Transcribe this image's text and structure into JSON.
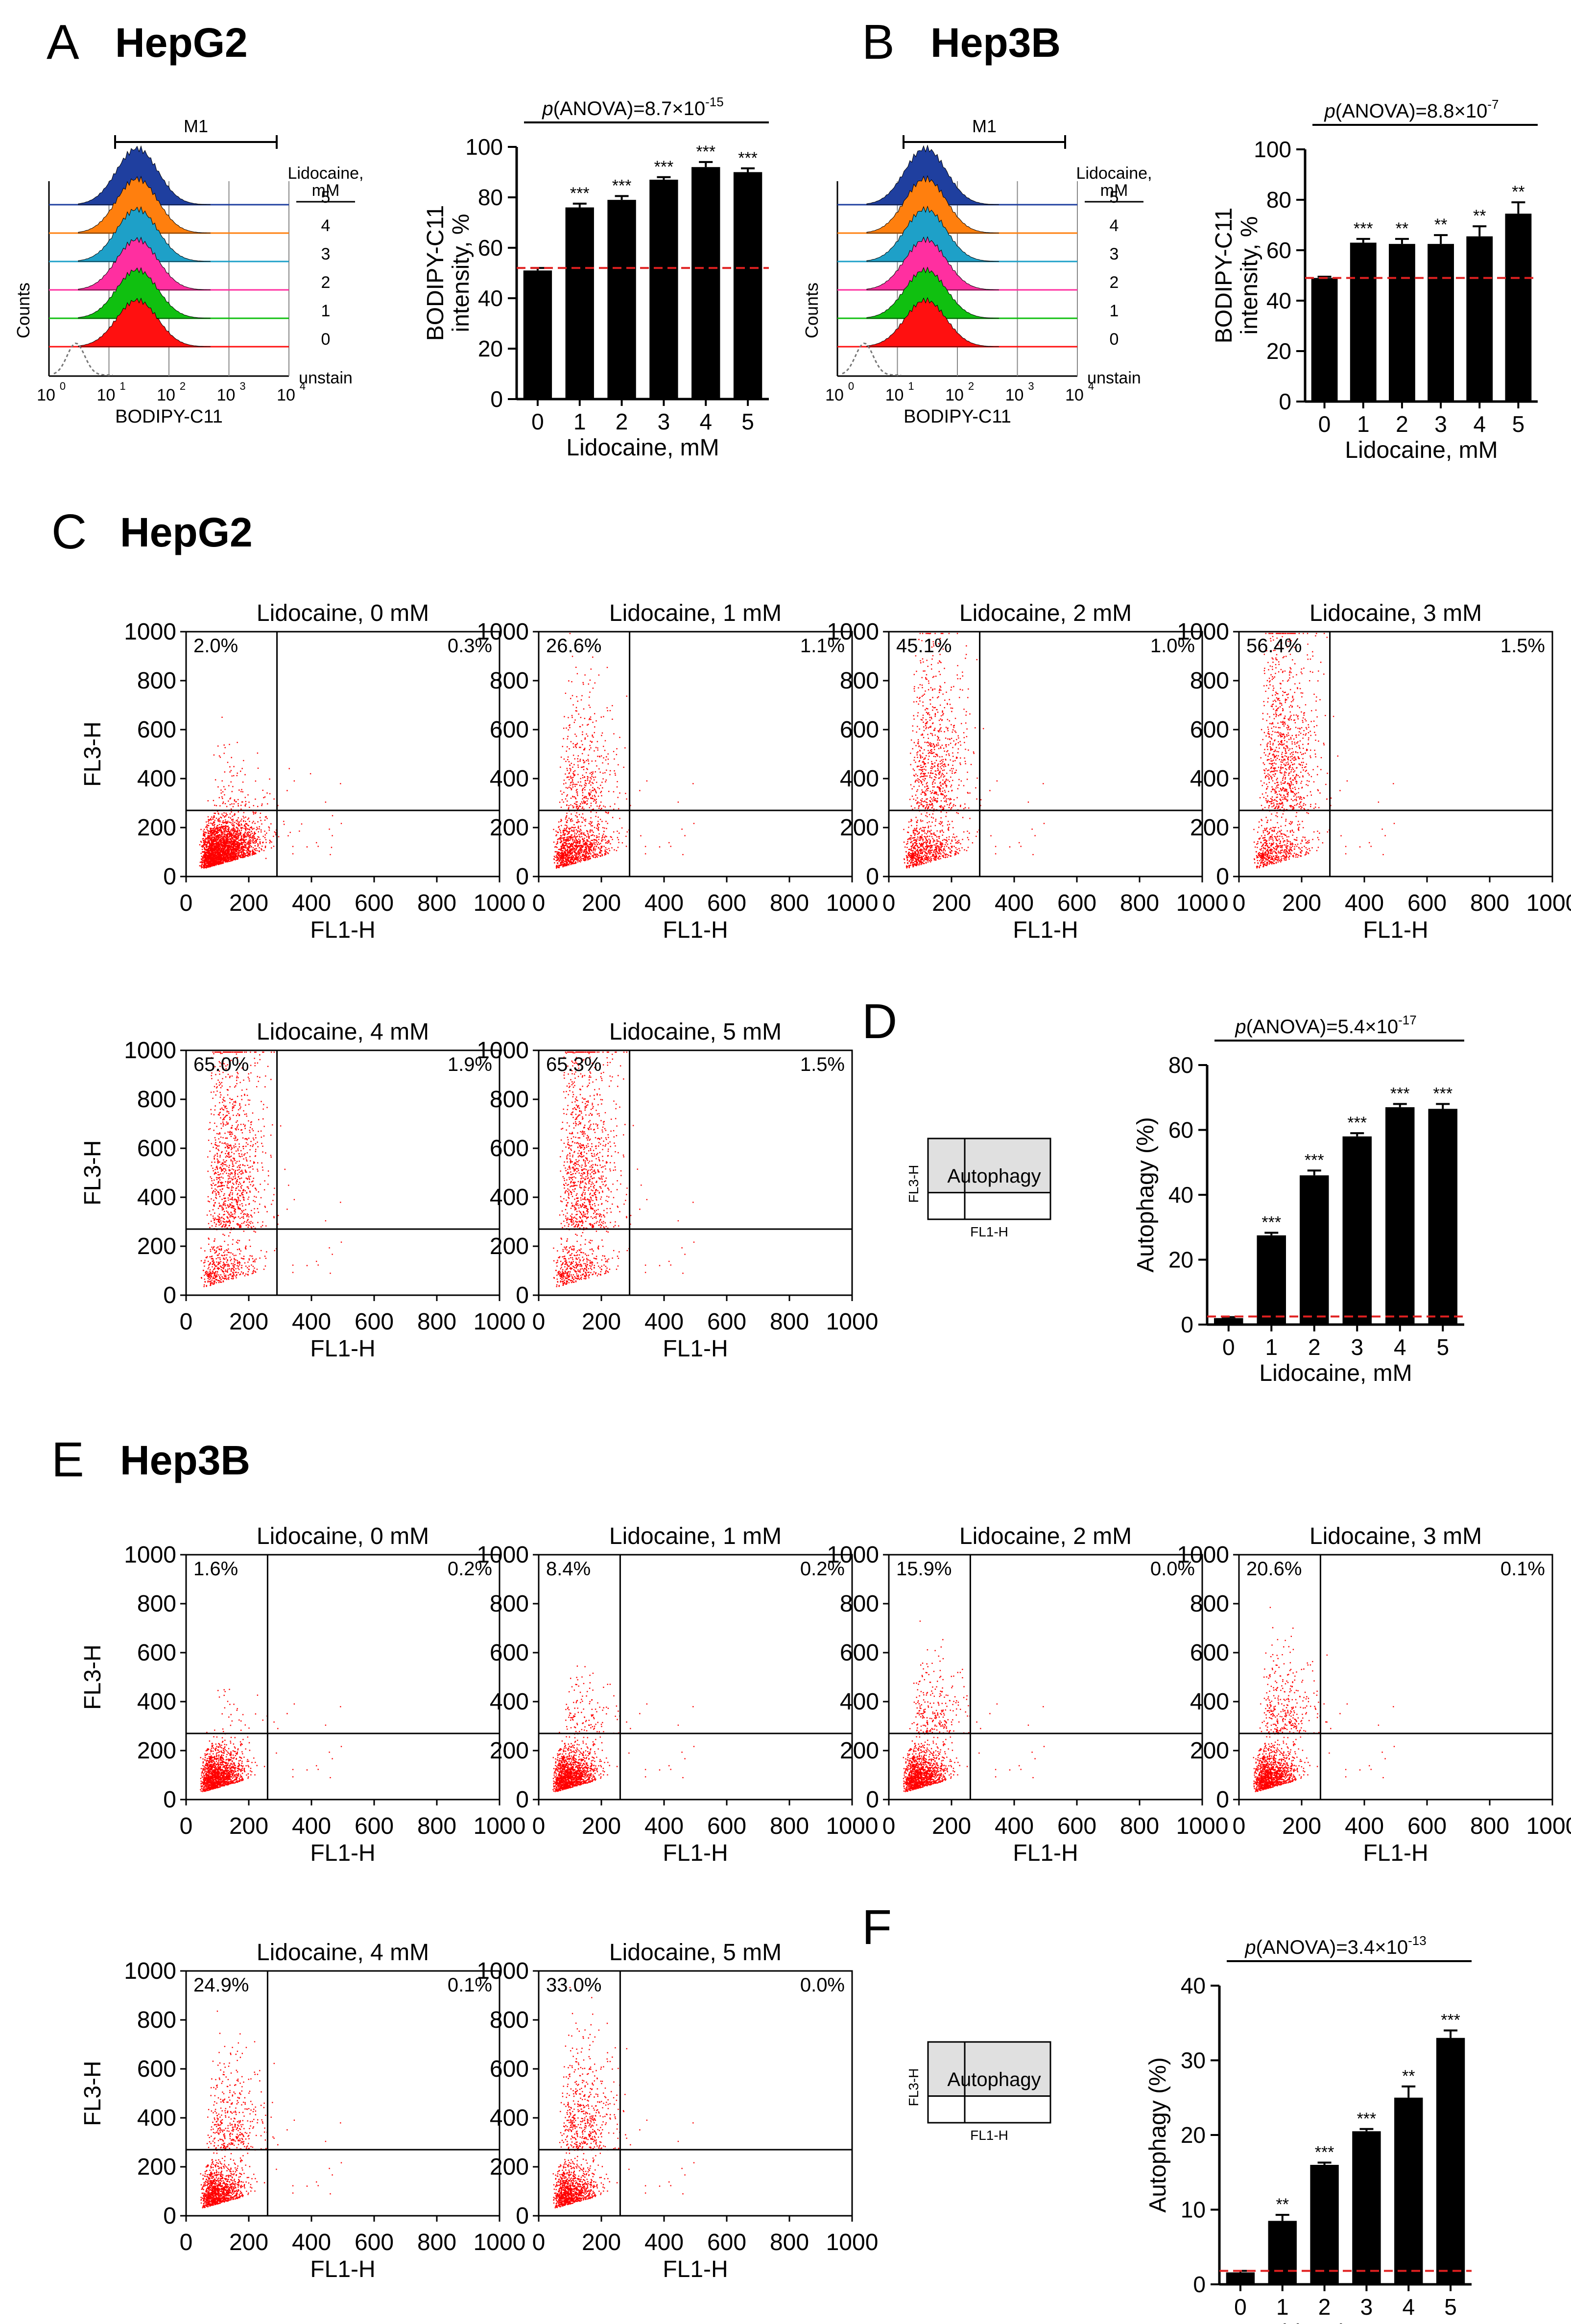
{
  "panels": {
    "A": {
      "letter": "A",
      "cell": "HepG2"
    },
    "B": {
      "letter": "B",
      "cell": "Hep3B"
    },
    "C": {
      "letter": "C",
      "cell": "HepG2"
    },
    "D": {
      "letter": "D"
    },
    "E": {
      "letter": "E",
      "cell": "Hep3B"
    },
    "F": {
      "letter": "F"
    }
  },
  "histogram": {
    "gate_label": "M1",
    "legend_title": [
      "Lidocaine,",
      "mM"
    ],
    "levels": [
      "5",
      "4",
      "3",
      "2",
      "1",
      "0"
    ],
    "unstain": "unstain",
    "xlabel": "BODIPY-C11",
    "ylabel": "Counts",
    "x_ticks": [
      "10",
      "10",
      "10",
      "10",
      "10"
    ],
    "x_exps": [
      "0",
      "1",
      "2",
      "3",
      "4"
    ],
    "colors": [
      "#1f3f9f",
      "#ff7f0e",
      "#1ea0c8",
      "#ff2fa0",
      "#10c010",
      "#ff1010"
    ]
  },
  "quadrant_legend": {
    "label": "Autophagy",
    "ylabel": "FL3-H",
    "xlabel": "FL1-H"
  },
  "chart_data": [
    {
      "id": "A-bar",
      "type": "bar",
      "panel": "A",
      "title_italic": "p",
      "title": "(ANOVA)=8.7×10",
      "title_exp": "-15",
      "categories": [
        "0",
        "1",
        "2",
        "3",
        "4",
        "5"
      ],
      "values": [
        51,
        76,
        79,
        87,
        92,
        90
      ],
      "errors": [
        1,
        1.5,
        1.5,
        1,
        2,
        1.5
      ],
      "significance": [
        "",
        "***",
        "***",
        "***",
        "***",
        "***"
      ],
      "ylim": [
        0,
        100
      ],
      "yticks": [
        "0",
        "20",
        "40",
        "60",
        "80",
        "100"
      ],
      "ylabel": [
        "BODIPY-C11",
        "intensity, %"
      ],
      "xlabel": "Lidocaine, mM",
      "reference_line": 52
    },
    {
      "id": "B-bar",
      "type": "bar",
      "panel": "B",
      "title_italic": "p",
      "title": "(ANOVA)=8.8×10",
      "title_exp": "-7",
      "categories": [
        "0",
        "1",
        "2",
        "3",
        "4",
        "5"
      ],
      "values": [
        49,
        63,
        62.5,
        62.5,
        65.5,
        74.5
      ],
      "errors": [
        0.5,
        1.5,
        2,
        3.5,
        4,
        4.5
      ],
      "significance": [
        "",
        "***",
        "**",
        "**",
        "**",
        "**"
      ],
      "ylim": [
        0,
        100
      ],
      "yticks": [
        "0",
        "20",
        "40",
        "60",
        "80",
        "100"
      ],
      "ylabel": [
        "BODIPY-C11",
        "intensity, %"
      ],
      "xlabel": "Lidocaine, mM",
      "reference_line": 49
    },
    {
      "id": "C-scatter",
      "type": "scatter",
      "panel": "C",
      "xlabel": "FL1-H",
      "ylabel": "FL3-H",
      "xticks": [
        "0",
        "200",
        "400",
        "600",
        "800",
        "1000"
      ],
      "yticks": [
        "0",
        "200",
        "400",
        "600",
        "800",
        "1000"
      ],
      "xlim": [
        0,
        1000
      ],
      "ylim": [
        0,
        1000
      ],
      "gate_x": 290,
      "gate_y": 270,
      "plots": [
        {
          "title": "Lidocaine, 0 mM",
          "upper_left": "2.0%",
          "upper_right": "0.3%"
        },
        {
          "title": "Lidocaine, 1 mM",
          "upper_left": "26.6%",
          "upper_right": "1.1%"
        },
        {
          "title": "Lidocaine, 2 mM",
          "upper_left": "45.1%",
          "upper_right": "1.0%"
        },
        {
          "title": "Lidocaine, 3 mM",
          "upper_left": "56.4%",
          "upper_right": "1.5%"
        },
        {
          "title": "Lidocaine, 4 mM",
          "upper_left": "65.0%",
          "upper_right": "1.9%"
        },
        {
          "title": "Lidocaine, 5 mM",
          "upper_left": "65.3%",
          "upper_right": "1.5%"
        }
      ]
    },
    {
      "id": "D-bar",
      "type": "bar",
      "panel": "D",
      "title_italic": "p",
      "title": "(ANOVA)=5.4×10",
      "title_exp": "-17",
      "categories": [
        "0",
        "1",
        "2",
        "3",
        "4",
        "5"
      ],
      "values": [
        2,
        27.5,
        46,
        58,
        67,
        66.5
      ],
      "errors": [
        0.3,
        0.8,
        1.5,
        1,
        1,
        1.5
      ],
      "significance": [
        "",
        "***",
        "***",
        "***",
        "***",
        "***"
      ],
      "ylim": [
        0,
        80
      ],
      "yticks": [
        "0",
        "20",
        "40",
        "60",
        "80"
      ],
      "ylabel": [
        "Autophagy (%)"
      ],
      "xlabel": "Lidocaine, mM",
      "reference_line": 2.5
    },
    {
      "id": "E-scatter",
      "type": "scatter",
      "panel": "E",
      "xlabel": "FL1-H",
      "ylabel": "FL3-H",
      "xticks": [
        "0",
        "200",
        "400",
        "600",
        "800",
        "1000"
      ],
      "yticks": [
        "0",
        "200",
        "400",
        "600",
        "800",
        "1000"
      ],
      "xlim": [
        0,
        1000
      ],
      "ylim": [
        0,
        1000
      ],
      "gate_x": 260,
      "gate_y": 270,
      "plots": [
        {
          "title": "Lidocaine, 0 mM",
          "upper_left": "1.6%",
          "upper_right": "0.2%"
        },
        {
          "title": "Lidocaine, 1 mM",
          "upper_left": "8.4%",
          "upper_right": "0.2%"
        },
        {
          "title": "Lidocaine, 2 mM",
          "upper_left": "15.9%",
          "upper_right": "0.0%"
        },
        {
          "title": "Lidocaine, 3 mM",
          "upper_left": "20.6%",
          "upper_right": "0.1%"
        },
        {
          "title": "Lidocaine, 4 mM",
          "upper_left": "24.9%",
          "upper_right": "0.1%"
        },
        {
          "title": "Lidocaine, 5 mM",
          "upper_left": "33.0%",
          "upper_right": "0.0%"
        }
      ]
    },
    {
      "id": "F-bar",
      "type": "bar",
      "panel": "F",
      "title_italic": "p",
      "title": "(ANOVA)=3.4×10",
      "title_exp": "-13",
      "categories": [
        "0",
        "1",
        "2",
        "3",
        "4",
        "5"
      ],
      "values": [
        1.6,
        8.5,
        16,
        20.5,
        25,
        33
      ],
      "errors": [
        0.2,
        0.8,
        0.3,
        0.3,
        1.5,
        1
      ],
      "significance": [
        "",
        "**",
        "***",
        "***",
        "**",
        "***"
      ],
      "ylim": [
        0,
        40
      ],
      "yticks": [
        "0",
        "10",
        "20",
        "30",
        "40"
      ],
      "ylabel": [
        "Autophagy (%)"
      ],
      "xlabel": "Lidocaine, mM",
      "reference_line": 1.8
    }
  ]
}
